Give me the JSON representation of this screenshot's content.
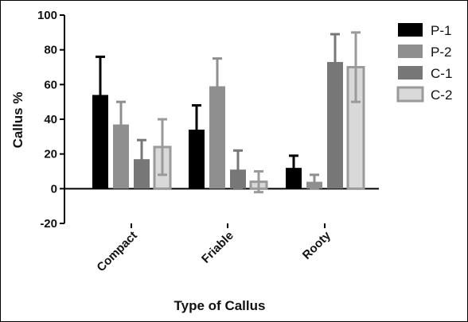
{
  "chart_data": {
    "type": "bar",
    "title": "",
    "xlabel": "Type of Callus",
    "ylabel": "Callus %",
    "ylim": [
      -20,
      100
    ],
    "yticks": [
      -20,
      0,
      20,
      40,
      60,
      80,
      100
    ],
    "categories": [
      "Compact",
      "Friable",
      "Rooty"
    ],
    "series": [
      {
        "name": "P-1",
        "color": "#000000",
        "fill": "#000000",
        "values": [
          54,
          34,
          12
        ],
        "errors": [
          22,
          14,
          7
        ]
      },
      {
        "name": "P-2",
        "color": "#8f8f8f",
        "fill": "#8f8f8f",
        "values": [
          37,
          59,
          4
        ],
        "errors": [
          13,
          16,
          4
        ]
      },
      {
        "name": "C-1",
        "color": "#777777",
        "fill": "#777777",
        "values": [
          17,
          11,
          73
        ],
        "errors": [
          11,
          11,
          16
        ]
      },
      {
        "name": "C-2",
        "color": "#9a9a9a",
        "fill": "#d9d9d9",
        "values": [
          24,
          4,
          70
        ],
        "errors": [
          16,
          6,
          20
        ]
      }
    ],
    "legend": "right",
    "grid": false
  }
}
